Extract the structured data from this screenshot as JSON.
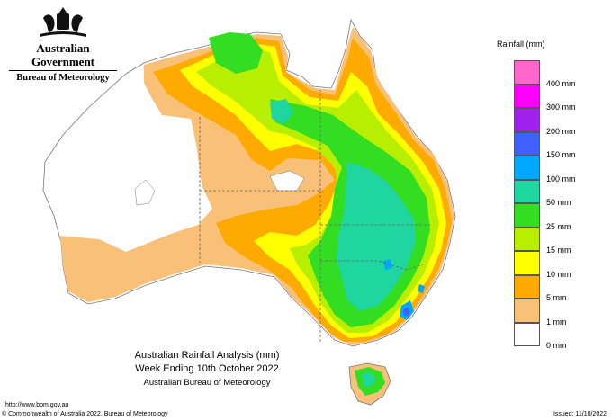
{
  "header": {
    "government": "Australian Government",
    "bureau": "Bureau of Meteorology"
  },
  "legend": {
    "title": "Rainfall (mm)",
    "items": [
      {
        "label": "400 mm",
        "color": "#ff66cc"
      },
      {
        "label": "300 mm",
        "color": "#ff00ff"
      },
      {
        "label": "200 mm",
        "color": "#a020f0"
      },
      {
        "label": "150 mm",
        "color": "#4060ff"
      },
      {
        "label": "100 mm",
        "color": "#00a8ff"
      },
      {
        "label": "50 mm",
        "color": "#20d6a0"
      },
      {
        "label": "25 mm",
        "color": "#33dd22"
      },
      {
        "label": "15 mm",
        "color": "#b8ee00"
      },
      {
        "label": "10 mm",
        "color": "#ffff00"
      },
      {
        "label": "5 mm",
        "color": "#ffaa00"
      },
      {
        "label": "1 mm",
        "color": "#f9c078"
      },
      {
        "label": "0 mm",
        "color": "#ffffff"
      }
    ]
  },
  "title": {
    "line1": "Australian Rainfall Analysis (mm)",
    "line2": "Week Ending 10th October 2022",
    "line3": "Australian Bureau of Meteorology"
  },
  "footer": {
    "url": "http://www.bom.gov.au",
    "copyright": "© Commonwealth of Australia 2022, Bureau of Meteorology",
    "issued": "Issued: 11/10/2022"
  }
}
